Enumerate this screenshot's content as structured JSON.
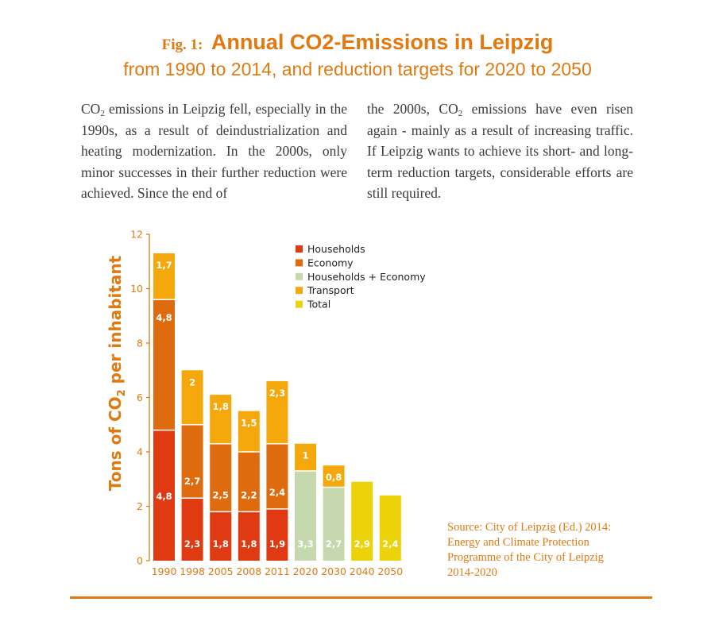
{
  "header": {
    "fig_label": "Fig. 1:",
    "title": "Annual CO2-Emissions in Leipzig",
    "subtitle": "from 1990 to 2014, and reduction targets for 2020 to 2050"
  },
  "text": {
    "left": {
      "co": "CO",
      "sub": "2",
      "rest": " emissions in Leipzig fell, especially in the 1990s, as a result of deindustrialization and heating modernization. In the 2000s, only minor successes in their further reduction were achieved. Since the end of"
    },
    "right": {
      "before": "the 2000s, CO",
      "sub": "2",
      "after": " emissions have even risen again - mainly as a result of increasing traffic. If Leipzig wants to achieve its short- and long-term reduction targets, considerable efforts are still required."
    }
  },
  "source": {
    "lines": [
      "Source: City of Leipzig (Ed.) 2014:",
      "Energy and Climate Protection",
      "Programme of the City of Leipzig",
      "2014-2020"
    ]
  },
  "colors": {
    "accent": "#e07a10",
    "households": "#e03a12",
    "economy": "#de6c0e",
    "households_economy": "#c6d9ae",
    "transport": "#f5a80c",
    "total": "#ecd20a"
  },
  "chart_data": {
    "type": "bar",
    "stacked": true,
    "ylabel_main": "Tons of CO",
    "ylabel_sub": "2",
    "ylabel_tail": " per inhabitant",
    "ylim": [
      0,
      12
    ],
    "yticks": [
      "0",
      "2",
      "4",
      "6",
      "8",
      "10",
      "12"
    ],
    "categories": [
      "1990",
      "1998",
      "2005",
      "2008",
      "2011",
      "2020",
      "2030",
      "2040",
      "2050"
    ],
    "legend_position": "top-right",
    "series": [
      {
        "name": "Households",
        "color_key": "households",
        "values": [
          4.8,
          2.3,
          1.8,
          1.8,
          1.9,
          null,
          null,
          null,
          null
        ],
        "labels": [
          "4,8",
          "2,3",
          "1,8",
          "1,8",
          "1,9",
          "",
          "",
          "",
          ""
        ]
      },
      {
        "name": "Economy",
        "color_key": "economy",
        "values": [
          4.8,
          2.7,
          2.5,
          2.2,
          2.4,
          null,
          null,
          null,
          null
        ],
        "labels": [
          "4,8",
          "2,7",
          "2,5",
          "2,2",
          "2,4",
          "",
          "",
          "",
          ""
        ]
      },
      {
        "name": "Households + Economy",
        "color_key": "households_economy",
        "values": [
          null,
          null,
          null,
          null,
          null,
          3.3,
          2.7,
          null,
          null
        ],
        "labels": [
          "",
          "",
          "",
          "",
          "",
          "3,3",
          "2,7",
          "",
          ""
        ]
      },
      {
        "name": "Transport",
        "color_key": "transport",
        "values": [
          1.7,
          2,
          1.8,
          1.5,
          2.3,
          1,
          0.8,
          null,
          null
        ],
        "labels": [
          "1,7",
          "2",
          "1,8",
          "1,5",
          "2,3",
          "1",
          "0,8",
          "",
          ""
        ]
      },
      {
        "name": "Total",
        "color_key": "total",
        "values": [
          null,
          null,
          null,
          null,
          null,
          null,
          null,
          2.9,
          2.4
        ],
        "labels": [
          "",
          "",
          "",
          "",
          "",
          "",
          "",
          "2,9",
          "2,4"
        ]
      }
    ]
  }
}
